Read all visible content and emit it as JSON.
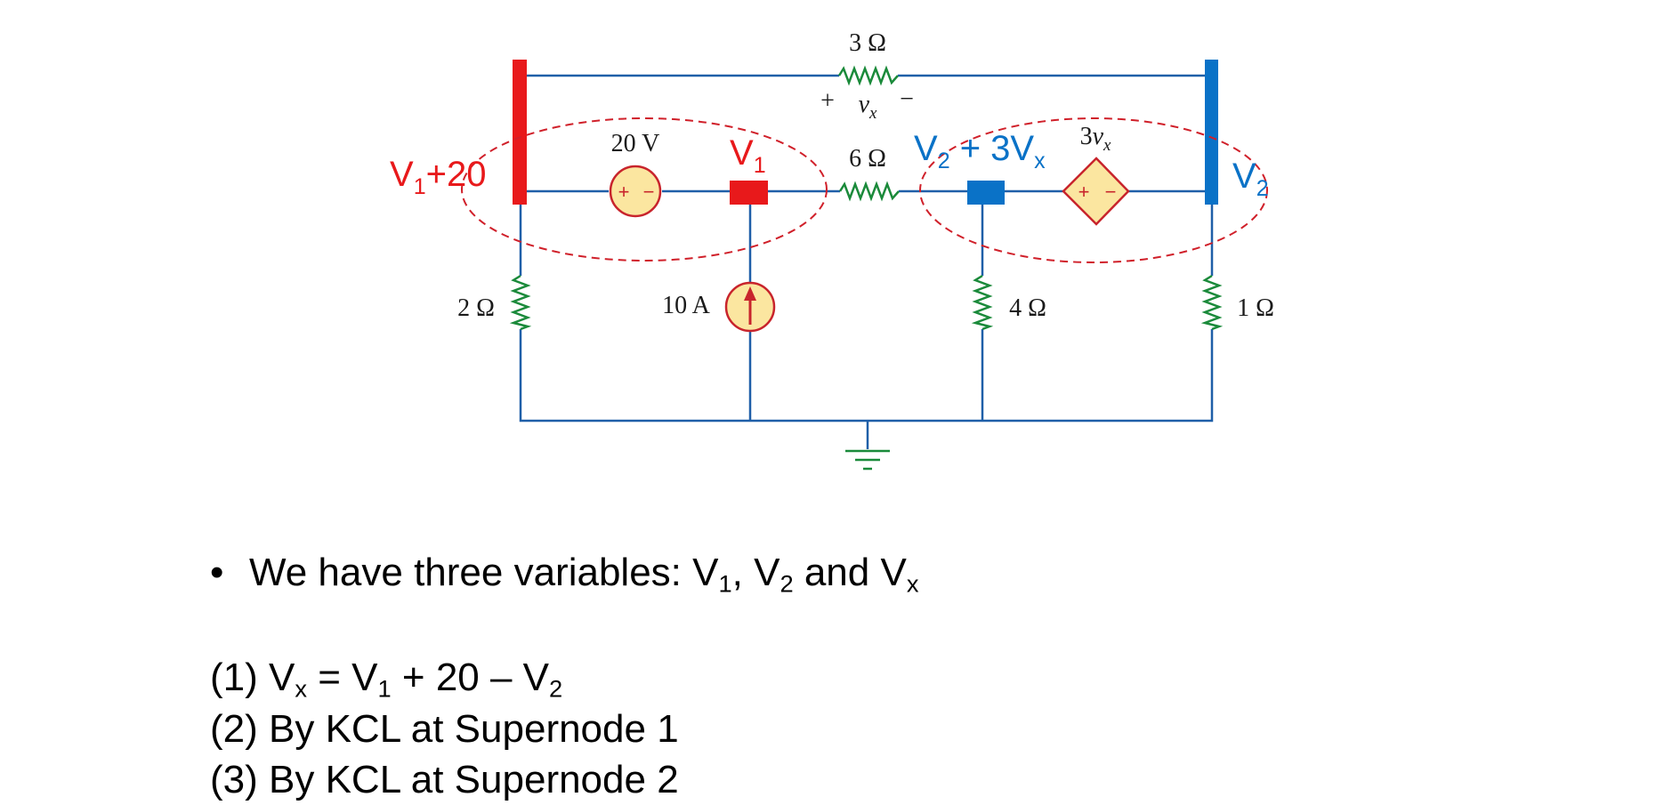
{
  "diagram": {
    "resistors": {
      "r_top": "3 Ω",
      "r_mid": "6 Ω",
      "r_left": "2 Ω",
      "r_center": "4 Ω",
      "r_right": "1 Ω"
    },
    "vx_label": {
      "plus": "+",
      "var": "v",
      "sub": "x",
      "minus": "−"
    },
    "source_20v": "20 V",
    "source_10a": "10 A",
    "dep_source": {
      "coef": "3",
      "var": "v",
      "sub": "x"
    },
    "node_labels": {
      "v1_plus20": {
        "main": "V",
        "sub": "1",
        "rest": "+20"
      },
      "v1": {
        "main": "V",
        "sub": "1"
      },
      "v2_plus3vx": {
        "main": "V",
        "sub": "2",
        "mid": " + 3V",
        "sub2": "x"
      },
      "v2": {
        "main": "V",
        "sub": "2"
      }
    },
    "colors": {
      "red": "#e8191b",
      "blue": "#0a72c7",
      "wire": "#1f5fa8",
      "resistor": "#1a8a3a",
      "source_fill": "#fbe6a0",
      "source_stroke": "#c8242c",
      "dashed": "#d0202a"
    }
  },
  "text": {
    "bullet": "•",
    "line1": {
      "pre": "We have three variables: V",
      "s1": "1",
      "m1": ", V",
      "s2": "2",
      "m2": " and V",
      "s3": "x"
    },
    "eq1": {
      "pre": "(1) V",
      "s1": "x",
      "m1": " = V",
      "s2": "1",
      "m2": " + 20 – V",
      "s3": "2"
    },
    "eq2": "(2) By KCL at Supernode 1",
    "eq3": "(3) By KCL at Supernode 2"
  }
}
